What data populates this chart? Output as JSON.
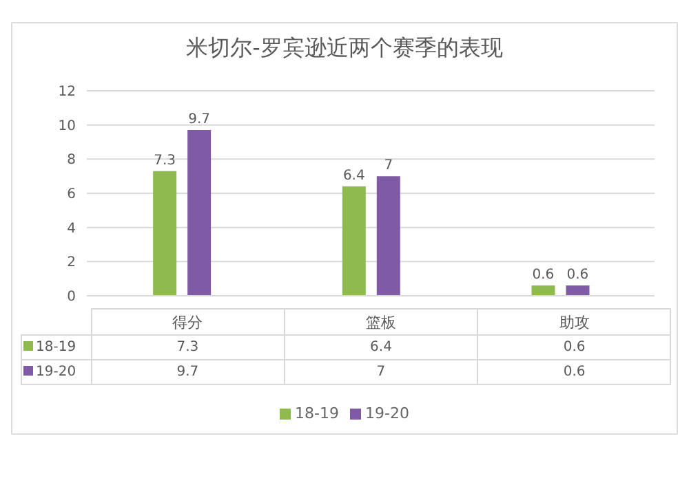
{
  "chart_data": {
    "type": "bar",
    "title": "米切尔-罗宾逊近两个赛季的表现",
    "categories": [
      "得分",
      "篮板",
      "助攻"
    ],
    "series": [
      {
        "name": "18-19",
        "color": "#8fba4f",
        "values": [
          7.3,
          6.4,
          0.6
        ],
        "value_labels": [
          "7.3",
          "6.4",
          "0.6"
        ]
      },
      {
        "name": "19-20",
        "color": "#7f5ba6",
        "values": [
          9.7,
          7,
          0.6
        ],
        "value_labels": [
          "9.7",
          "7",
          "0.6"
        ]
      }
    ],
    "ylim": [
      0,
      12
    ],
    "yticks": [
      0,
      2,
      4,
      6,
      8,
      10,
      12
    ],
    "grid": "y",
    "legend": "bottom",
    "data_labels": true,
    "annotations": [
      "7.3",
      "6.4",
      "0.6",
      "9.7",
      "7",
      "0.6"
    ]
  }
}
